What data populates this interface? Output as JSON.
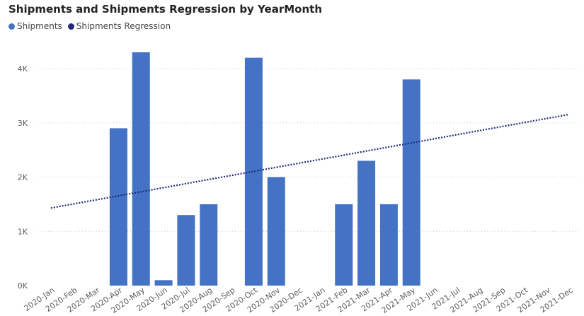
{
  "chart_data": {
    "type": "bar",
    "title": "Shipments and Shipments Regression by YearMonth",
    "xlabel": "",
    "ylabel": "",
    "ylim": [
      0,
      4300
    ],
    "ytick_labels": [
      "0K",
      "1K",
      "2K",
      "3K",
      "4K"
    ],
    "yticks": [
      0,
      1000,
      2000,
      3000,
      4000
    ],
    "grid": true,
    "legend_placement": "top-left",
    "categories": [
      "2020-Jan",
      "2020-Feb",
      "2020-Mar",
      "2020-Apr",
      "2020-May",
      "2020-Jun",
      "2020-Jul",
      "2020-Aug",
      "2020-Sep",
      "2020-Oct",
      "2020-Nov",
      "2020-Dec",
      "2021-Jan",
      "2021-Feb",
      "2021-Mar",
      "2021-Apr",
      "2021-May",
      "2021-Jun",
      "2021-Jul",
      "2021-Aug",
      "2021-Sep",
      "2021-Oct",
      "2021-Nov",
      "2021-Dec"
    ],
    "series": [
      {
        "name": "Shipments",
        "type": "bar",
        "color": "#4472C4",
        "values": [
          null,
          null,
          null,
          2900,
          4300,
          100,
          1300,
          1500,
          null,
          4200,
          2000,
          null,
          null,
          1500,
          2300,
          1500,
          3800,
          null,
          null,
          null,
          null,
          null,
          null,
          null
        ]
      },
      {
        "name": "Shipments Regression",
        "type": "line",
        "style": "dotted",
        "color": "#1F2A7A",
        "values": [
          1430,
          1505,
          1580,
          1655,
          1730,
          1805,
          1880,
          1955,
          2030,
          2105,
          2180,
          2255,
          2330,
          2405,
          2480,
          2555,
          2630,
          2705,
          2780,
          2855,
          2930,
          3005,
          3080,
          3155
        ]
      }
    ]
  }
}
